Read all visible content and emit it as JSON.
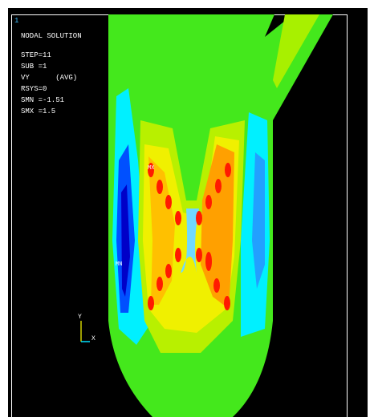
{
  "header": {
    "window_number": "1",
    "title": "NODAL SOLUTION",
    "lines": [
      "STEP=11",
      "SUB =1",
      "VY      (AVG)",
      "RSYS=0",
      "SMN =-1.51",
      "SMX =1.5"
    ]
  },
  "labels": {
    "min": "MN",
    "max": "MX"
  },
  "triad": {
    "y": "Y",
    "x": "X"
  }
}
